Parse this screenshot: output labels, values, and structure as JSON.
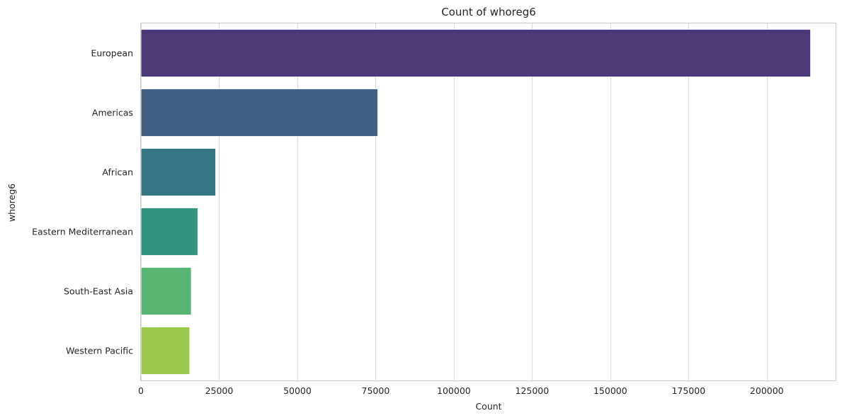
{
  "chart_data": {
    "type": "bar",
    "orientation": "horizontal",
    "title": "Count of whoreg6",
    "xlabel": "Count",
    "ylabel": "whoreg6",
    "categories": [
      "European",
      "Americas",
      "African",
      "Eastern Mediterranean",
      "South-East Asia",
      "Western Pacific"
    ],
    "values": [
      214000,
      75700,
      23900,
      18200,
      16100,
      15600
    ],
    "colors": [
      "#4b3a77",
      "#415e83",
      "#357682",
      "#319380",
      "#58b473",
      "#9bc94c"
    ],
    "xlim": [
      0,
      222000
    ],
    "xticks": [
      0,
      25000,
      50000,
      75000,
      100000,
      125000,
      150000,
      175000,
      200000
    ],
    "xtick_labels": [
      "0",
      "25000",
      "50000",
      "75000",
      "100000",
      "125000",
      "150000",
      "175000",
      "200000"
    ],
    "grid": "vertical",
    "legend": "none"
  }
}
